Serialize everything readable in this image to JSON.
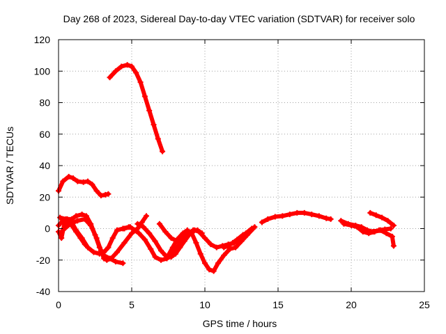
{
  "chart_data": {
    "type": "scatter",
    "title": "Day 268 of 2023, Sidereal Day-to-day VTEC variation (SDTVAR) for receiver solo",
    "xlabel": "GPS time / hours",
    "ylabel": "SDTVAR / TECUs",
    "xlim": [
      0,
      25
    ],
    "ylim": [
      -40,
      120
    ],
    "xticks": [
      0,
      5,
      10,
      15,
      20,
      25
    ],
    "yticks": [
      -40,
      -20,
      0,
      20,
      40,
      60,
      80,
      100,
      120
    ],
    "grid": true,
    "legend": "none",
    "series_color": "#ff0000",
    "series": [
      {
        "name": "arc-1",
        "points": [
          [
            0,
            24
          ],
          [
            0.3,
            30
          ],
          [
            0.7,
            33
          ],
          [
            1,
            32
          ],
          [
            1.3,
            30
          ],
          [
            1.7,
            29.5
          ],
          [
            2,
            30
          ],
          [
            2.3,
            28
          ],
          [
            2.6,
            24
          ],
          [
            2.9,
            21
          ],
          [
            3.2,
            21.5
          ],
          [
            3.4,
            22
          ]
        ]
      },
      {
        "name": "arc-2",
        "points": [
          [
            3.5,
            96
          ],
          [
            3.9,
            100
          ],
          [
            4.3,
            103
          ],
          [
            4.7,
            104
          ],
          [
            5,
            103
          ],
          [
            5.3,
            99
          ],
          [
            5.6,
            93
          ],
          [
            5.9,
            84
          ],
          [
            6.2,
            75
          ],
          [
            6.5,
            66
          ],
          [
            6.8,
            57
          ],
          [
            7.1,
            49
          ]
        ]
      },
      {
        "name": "arc-3",
        "points": [
          [
            0,
            -2
          ],
          [
            0.2,
            -6
          ],
          [
            0.4,
            3
          ],
          [
            0.6,
            6
          ],
          [
            0.9,
            4
          ],
          [
            1.2,
            -1
          ],
          [
            1.6,
            -6
          ],
          [
            2,
            -12
          ],
          [
            2.4,
            -15
          ],
          [
            2.8,
            -16
          ],
          [
            3.1,
            -15
          ],
          [
            3.4,
            -12
          ],
          [
            3.7,
            -6
          ],
          [
            4,
            -1
          ],
          [
            4.4,
            0
          ],
          [
            4.8,
            1
          ]
        ]
      },
      {
        "name": "arc-4",
        "points": [
          [
            0,
            2
          ],
          [
            0.3,
            5
          ],
          [
            0.6,
            4
          ],
          [
            0.9,
            2
          ],
          [
            1.2,
            -2
          ],
          [
            1.5,
            -6
          ],
          [
            1.8,
            -10
          ]
        ]
      },
      {
        "name": "arc-5",
        "points": [
          [
            0.1,
            7
          ],
          [
            0.5,
            6
          ],
          [
            0.9,
            6
          ],
          [
            1.2,
            8
          ],
          [
            1.6,
            9
          ],
          [
            1.9,
            8
          ],
          [
            2.2,
            3
          ],
          [
            2.5,
            -4
          ],
          [
            2.8,
            -12
          ],
          [
            3.1,
            -17
          ],
          [
            3.5,
            -19
          ],
          [
            3.9,
            -21
          ],
          [
            4.4,
            -22
          ]
        ]
      },
      {
        "name": "arc-6",
        "points": [
          [
            0.3,
            -1
          ],
          [
            0.8,
            3
          ],
          [
            1.3,
            5
          ],
          [
            1.8,
            6
          ],
          [
            2.2,
            2
          ],
          [
            2.6,
            -6
          ],
          [
            2.9,
            -14
          ],
          [
            3.1,
            -19
          ],
          [
            3.3,
            -20
          ],
          [
            3.6,
            -19
          ],
          [
            4,
            -15
          ],
          [
            4.5,
            -9
          ],
          [
            5,
            -3
          ],
          [
            5.4,
            0
          ],
          [
            5.7,
            4
          ],
          [
            6,
            8
          ]
        ]
      },
      {
        "name": "arc-7",
        "points": [
          [
            4.5,
            0
          ],
          [
            4.9,
            1
          ],
          [
            5.2,
            -1
          ],
          [
            5.5,
            -3
          ],
          [
            5.9,
            -7
          ],
          [
            6.3,
            -13
          ],
          [
            6.6,
            -18
          ],
          [
            7,
            -20
          ],
          [
            7.4,
            -19
          ],
          [
            7.8,
            -17
          ],
          [
            8.1,
            -12
          ],
          [
            8.5,
            -7
          ],
          [
            8.9,
            -3
          ],
          [
            9.2,
            -2
          ]
        ]
      },
      {
        "name": "arc-8",
        "points": [
          [
            5.4,
            3
          ],
          [
            5.8,
            1
          ],
          [
            6.2,
            -3
          ],
          [
            6.6,
            -8
          ],
          [
            7,
            -14
          ],
          [
            7.3,
            -17
          ],
          [
            7.7,
            -18
          ],
          [
            8,
            -16
          ],
          [
            8.3,
            -12
          ],
          [
            8.6,
            -8
          ],
          [
            9,
            -3
          ],
          [
            9.3,
            -1
          ],
          [
            9.6,
            -2
          ],
          [
            10,
            -6
          ],
          [
            10.4,
            -10
          ],
          [
            10.8,
            -12
          ],
          [
            11.2,
            -11
          ],
          [
            11.6,
            -10
          ],
          [
            12,
            -9
          ],
          [
            12.4,
            -7
          ],
          [
            12.8,
            -3
          ],
          [
            13.2,
            0
          ]
        ]
      },
      {
        "name": "arc-9",
        "points": [
          [
            6.9,
            3
          ],
          [
            7.3,
            -2
          ],
          [
            7.7,
            -6
          ],
          [
            8.1,
            -8
          ],
          [
            8.5,
            -6
          ],
          [
            8.9,
            -3
          ],
          [
            9.2,
            -1
          ],
          [
            9.5,
            -1
          ],
          [
            9.8,
            -3
          ]
        ]
      },
      {
        "name": "arc-10",
        "points": [
          [
            7.5,
            -17
          ],
          [
            7.8,
            -12
          ],
          [
            8.1,
            -7
          ],
          [
            8.5,
            -3
          ],
          [
            8.8,
            -1
          ],
          [
            9.1,
            -3
          ],
          [
            9.4,
            -9
          ],
          [
            9.7,
            -16
          ],
          [
            10,
            -22
          ],
          [
            10.3,
            -26
          ],
          [
            10.6,
            -27
          ],
          [
            10.9,
            -22
          ],
          [
            11.3,
            -17
          ],
          [
            11.7,
            -13
          ],
          [
            12.1,
            -12
          ],
          [
            12.5,
            -8
          ],
          [
            12.9,
            -4
          ],
          [
            13.3,
            0
          ]
        ]
      },
      {
        "name": "arc-11",
        "points": [
          [
            11.3,
            -12
          ],
          [
            11.6,
            -11
          ],
          [
            11.9,
            -9
          ],
          [
            12.2,
            -7
          ],
          [
            12.6,
            -4
          ],
          [
            13,
            -2
          ],
          [
            13.4,
            1
          ]
        ]
      },
      {
        "name": "arc-12",
        "points": [
          [
            13.9,
            4
          ],
          [
            14.3,
            6
          ],
          [
            14.8,
            7.5
          ],
          [
            15.3,
            8
          ],
          [
            15.8,
            9
          ],
          [
            16.3,
            10
          ],
          [
            16.8,
            10
          ],
          [
            17.3,
            9
          ],
          [
            17.8,
            8
          ],
          [
            18.3,
            6.5
          ],
          [
            18.6,
            6
          ]
        ]
      },
      {
        "name": "arc-13",
        "points": [
          [
            19.3,
            5
          ],
          [
            19.8,
            3
          ],
          [
            20.3,
            2
          ],
          [
            20.7,
            1
          ],
          [
            21.1,
            -1
          ],
          [
            21.5,
            -2
          ],
          [
            21.9,
            -1
          ],
          [
            22.3,
            -0.5
          ],
          [
            22.7,
            0
          ]
        ]
      },
      {
        "name": "arc-14",
        "points": [
          [
            19.5,
            3
          ],
          [
            20,
            2
          ],
          [
            20.4,
            1
          ],
          [
            20.8,
            -2
          ],
          [
            21.2,
            -3
          ],
          [
            21.6,
            -2
          ],
          [
            22,
            -1
          ],
          [
            22.4,
            -3
          ],
          [
            22.8,
            -5
          ],
          [
            22.9,
            -11
          ]
        ]
      },
      {
        "name": "arc-15",
        "points": [
          [
            21.3,
            10
          ],
          [
            21.7,
            8.5
          ],
          [
            22.1,
            7
          ],
          [
            22.5,
            5
          ],
          [
            22.9,
            2
          ]
        ]
      }
    ]
  }
}
